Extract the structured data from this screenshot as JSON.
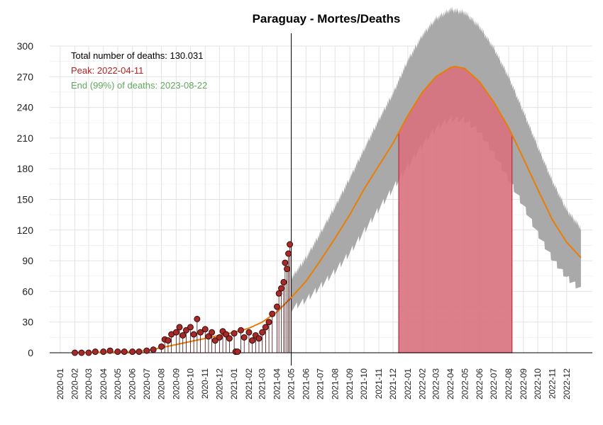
{
  "chart_data": {
    "type": "line",
    "title": "Paraguay - Mortes/Deaths",
    "xlabel": "",
    "ylabel": "",
    "ylim": [
      0,
      300
    ],
    "yticks": [
      0,
      30,
      60,
      90,
      120,
      150,
      180,
      210,
      240,
      270,
      300
    ],
    "x_range": [
      "2019-12-10",
      "2023-01-24"
    ],
    "xticks": [
      "2020-01-01",
      "2020-02-01",
      "2020-03-01",
      "2020-04-01",
      "2020-05-01",
      "2020-06-01",
      "2020-07-01",
      "2020-08-01",
      "2020-09-01",
      "2020-10-01",
      "2020-11-01",
      "2020-12-01",
      "2021-01-01",
      "2021-02-01",
      "2021-03-01",
      "2021-04-01",
      "2021-05-01",
      "2021-06-01",
      "2021-07-01",
      "2021-08-01",
      "2021-09-01",
      "2021-10-01",
      "2021-11-01",
      "2021-12-01",
      "2022-01-01",
      "2022-02-01",
      "2022-03-01",
      "2022-04-01",
      "2022-05-01",
      "2022-06-01",
      "2022-07-01",
      "2022-08-01",
      "2022-09-01",
      "2022-10-01",
      "2022-11-01",
      "2022-12-01"
    ],
    "xtick_labels": [
      "2020-01",
      "2020-02",
      "2020-03",
      "2020-04",
      "2020-05",
      "2020-06",
      "2020-07",
      "2020-08",
      "2020-09",
      "2020-10",
      "2020-11",
      "2020-12",
      "2021-01",
      "2021-02",
      "2021-03",
      "2021-04",
      "2021-05",
      "2021-06",
      "2021-07",
      "2021-08",
      "2021-09",
      "2021-10",
      "2021-11",
      "2021-12",
      "2022-01",
      "2022-02",
      "2022-03",
      "2022-04",
      "2022-05",
      "2022-06",
      "2022-07",
      "2022-08",
      "2022-09",
      "2022-10",
      "2022-11",
      "2022-12"
    ],
    "grid": true,
    "vline_date": "2021-05-01",
    "annotations": {
      "total": "Total number of deaths: 130.031",
      "peak": "Peak: 2022-04-11",
      "end": "End (99%) of deaths: 2023-08-22"
    },
    "fit_curve": {
      "color": "#E87E04",
      "points": [
        [
          "2020-02-01",
          0
        ],
        [
          "2020-04-01",
          0.5
        ],
        [
          "2020-06-01",
          1
        ],
        [
          "2020-07-01",
          2
        ],
        [
          "2020-08-01",
          5
        ],
        [
          "2020-09-01",
          8
        ],
        [
          "2020-10-01",
          11
        ],
        [
          "2020-11-01",
          14
        ],
        [
          "2020-12-01",
          17
        ],
        [
          "2021-01-01",
          20
        ],
        [
          "2021-02-01",
          24
        ],
        [
          "2021-03-01",
          30
        ],
        [
          "2021-04-01",
          40
        ],
        [
          "2021-05-01",
          54
        ],
        [
          "2021-06-01",
          70
        ],
        [
          "2021-07-01",
          90
        ],
        [
          "2021-08-01",
          112
        ],
        [
          "2021-09-01",
          135
        ],
        [
          "2021-10-01",
          160
        ],
        [
          "2021-11-01",
          183
        ],
        [
          "2021-12-01",
          205
        ],
        [
          "2022-01-01",
          232
        ],
        [
          "2022-02-01",
          255
        ],
        [
          "2022-03-01",
          270
        ],
        [
          "2022-04-01",
          279
        ],
        [
          "2022-04-11",
          280
        ],
        [
          "2022-05-01",
          278
        ],
        [
          "2022-06-01",
          265
        ],
        [
          "2022-07-01",
          245
        ],
        [
          "2022-08-01",
          220
        ],
        [
          "2022-09-01",
          190
        ],
        [
          "2022-10-01",
          160
        ],
        [
          "2022-11-01",
          130
        ],
        [
          "2022-12-01",
          108
        ],
        [
          "2022-12-31",
          93
        ]
      ]
    },
    "prediction_band": {
      "color": "#A9A9A9",
      "upper": [
        [
          "2021-05-01",
          73
        ],
        [
          "2021-06-01",
          93
        ],
        [
          "2021-07-01",
          117
        ],
        [
          "2021-08-01",
          143
        ],
        [
          "2021-09-01",
          171
        ],
        [
          "2021-10-01",
          199
        ],
        [
          "2021-11-01",
          228
        ],
        [
          "2021-12-01",
          254
        ],
        [
          "2022-01-01",
          286
        ],
        [
          "2022-02-01",
          311
        ],
        [
          "2022-03-01",
          327
        ],
        [
          "2022-04-01",
          336
        ],
        [
          "2022-05-01",
          333
        ],
        [
          "2022-06-01",
          319
        ],
        [
          "2022-07-01",
          298
        ],
        [
          "2022-08-01",
          270
        ],
        [
          "2022-09-01",
          236
        ],
        [
          "2022-10-01",
          202
        ],
        [
          "2022-11-01",
          168
        ],
        [
          "2022-12-01",
          140
        ],
        [
          "2022-12-31",
          122
        ]
      ],
      "lower": [
        [
          "2021-05-01",
          43
        ],
        [
          "2021-06-01",
          52
        ],
        [
          "2021-07-01",
          65
        ],
        [
          "2021-08-01",
          80
        ],
        [
          "2021-09-01",
          98
        ],
        [
          "2021-10-01",
          119
        ],
        [
          "2021-11-01",
          141
        ],
        [
          "2021-12-01",
          161
        ],
        [
          "2022-01-01",
          183
        ],
        [
          "2022-02-01",
          204
        ],
        [
          "2022-03-01",
          220
        ],
        [
          "2022-04-01",
          229
        ],
        [
          "2022-05-01",
          228
        ],
        [
          "2022-06-01",
          216
        ],
        [
          "2022-07-01",
          195
        ],
        [
          "2022-08-01",
          170
        ],
        [
          "2022-09-01",
          144
        ],
        [
          "2022-10-01",
          117
        ],
        [
          "2022-11-01",
          92
        ],
        [
          "2022-12-01",
          74
        ],
        [
          "2022-12-31",
          62
        ]
      ]
    },
    "peak_region": {
      "start": "2021-12-13",
      "end": "2022-08-08",
      "fill": "#D9717D",
      "stroke": "#C0303F"
    },
    "observed": {
      "color": "#A52A2A",
      "points": [
        [
          "2020-02-01",
          0
        ],
        [
          "2020-02-15",
          0
        ],
        [
          "2020-03-01",
          0
        ],
        [
          "2020-03-15",
          1
        ],
        [
          "2020-04-01",
          1
        ],
        [
          "2020-04-15",
          2
        ],
        [
          "2020-05-01",
          1
        ],
        [
          "2020-05-15",
          1
        ],
        [
          "2020-06-01",
          1
        ],
        [
          "2020-06-15",
          1
        ],
        [
          "2020-07-01",
          2
        ],
        [
          "2020-07-15",
          3
        ],
        [
          "2020-08-01",
          6
        ],
        [
          "2020-08-08",
          13
        ],
        [
          "2020-08-15",
          12
        ],
        [
          "2020-08-22",
          18
        ],
        [
          "2020-09-01",
          20
        ],
        [
          "2020-09-08",
          25
        ],
        [
          "2020-09-15",
          17
        ],
        [
          "2020-09-22",
          22
        ],
        [
          "2020-10-01",
          25
        ],
        [
          "2020-10-08",
          18
        ],
        [
          "2020-10-15",
          33
        ],
        [
          "2020-10-22",
          20
        ],
        [
          "2020-11-01",
          23
        ],
        [
          "2020-11-08",
          16
        ],
        [
          "2020-11-15",
          20
        ],
        [
          "2020-11-22",
          12
        ],
        [
          "2020-12-01",
          15
        ],
        [
          "2020-12-08",
          21
        ],
        [
          "2020-12-15",
          18
        ],
        [
          "2020-12-22",
          14
        ],
        [
          "2021-01-01",
          19
        ],
        [
          "2021-01-04",
          1
        ],
        [
          "2021-01-08",
          1
        ],
        [
          "2021-01-15",
          22
        ],
        [
          "2021-01-22",
          15
        ],
        [
          "2021-02-01",
          20
        ],
        [
          "2021-02-08",
          12
        ],
        [
          "2021-02-15",
          17
        ],
        [
          "2021-02-22",
          14
        ],
        [
          "2021-03-01",
          20
        ],
        [
          "2021-03-08",
          25
        ],
        [
          "2021-03-15",
          30
        ],
        [
          "2021-03-22",
          38
        ],
        [
          "2021-04-01",
          45
        ],
        [
          "2021-04-05",
          58
        ],
        [
          "2021-04-10",
          63
        ],
        [
          "2021-04-15",
          69
        ],
        [
          "2021-04-18",
          88
        ],
        [
          "2021-04-22",
          82
        ],
        [
          "2021-04-25",
          97
        ],
        [
          "2021-04-28",
          106
        ]
      ]
    }
  }
}
